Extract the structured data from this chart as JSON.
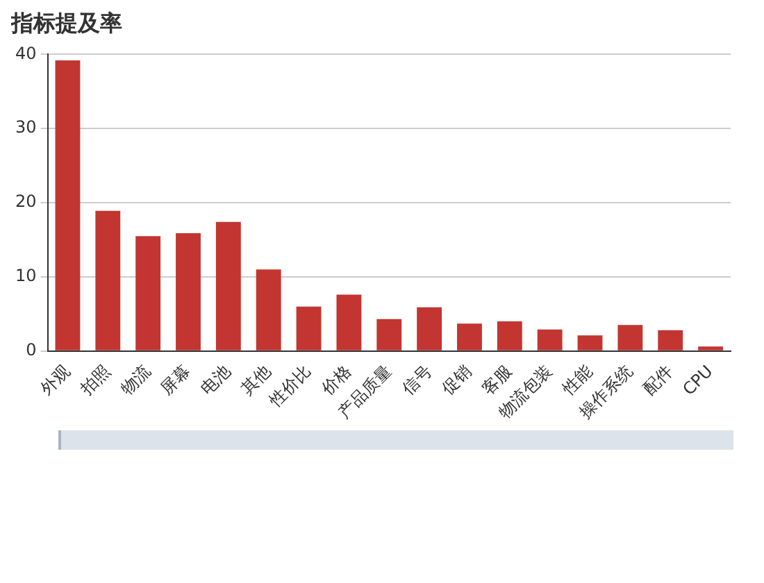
{
  "chart_data": {
    "type": "bar",
    "title": "指标提及率",
    "categories": [
      "外观",
      "拍照",
      "物流",
      "屏幕",
      "电池",
      "其他",
      "性价比",
      "价格",
      "产品质量",
      "信号",
      "促销",
      "客服",
      "物流包装",
      "性能",
      "操作系统",
      "配件",
      "CPU"
    ],
    "values": [
      39.2,
      18.9,
      15.5,
      15.9,
      17.4,
      11.0,
      6.0,
      7.6,
      4.3,
      5.9,
      3.7,
      4.0,
      2.9,
      2.1,
      3.5,
      2.8,
      0.6
    ],
    "color": "#c23531",
    "ylim": [
      0,
      40
    ],
    "yticks": [
      0,
      10,
      20,
      30,
      40
    ],
    "grid": "y"
  }
}
